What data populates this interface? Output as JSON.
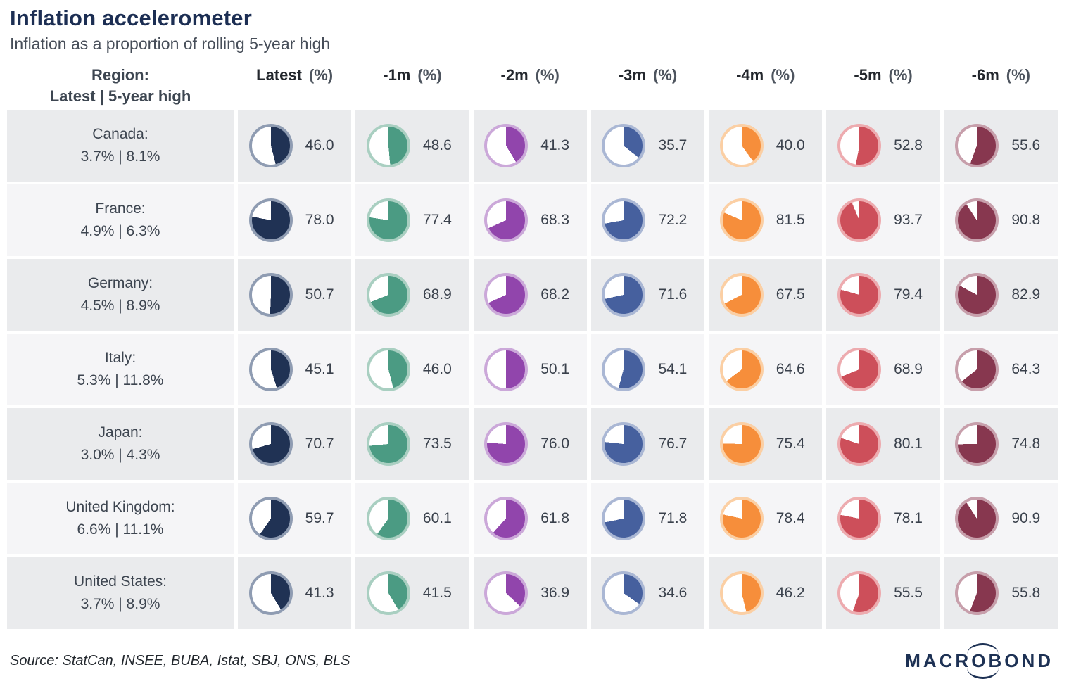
{
  "title": "Inflation accelerometer",
  "subtitle": "Inflation as a proportion of rolling 5-year high",
  "header": {
    "region_line1": "Region:",
    "region_line2": "Latest | 5-year high",
    "columns": [
      {
        "key": "latest",
        "label": "Latest",
        "unit": "(%)",
        "fill": "#203254",
        "ring": "#8f9cb2"
      },
      {
        "key": "1m",
        "label": "-1m",
        "unit": "(%)",
        "fill": "#4b9b83",
        "ring": "#a9cfc1"
      },
      {
        "key": "2m",
        "label": "-2m",
        "unit": "(%)",
        "fill": "#9145ac",
        "ring": "#cba8d9"
      },
      {
        "key": "3m",
        "label": "-3m",
        "unit": "(%)",
        "fill": "#46609e",
        "ring": "#aab7d4"
      },
      {
        "key": "4m",
        "label": "-4m",
        "unit": "(%)",
        "fill": "#f68e3b",
        "ring": "#fbcfa4"
      },
      {
        "key": "5m",
        "label": "-5m",
        "unit": "(%)",
        "fill": "#cd4f5a",
        "ring": "#edabaf"
      },
      {
        "key": "6m",
        "label": "-6m",
        "unit": "(%)",
        "fill": "#87374f",
        "ring": "#c79fab"
      }
    ]
  },
  "rows": [
    {
      "id": "canada",
      "region": "Canada:",
      "detail": "3.7% | 8.1%",
      "values": [
        46.0,
        48.6,
        41.3,
        35.7,
        40.0,
        52.8,
        55.6
      ]
    },
    {
      "id": "france",
      "region": "France:",
      "detail": "4.9% | 6.3%",
      "values": [
        78.0,
        77.4,
        68.3,
        72.2,
        81.5,
        93.7,
        90.8
      ]
    },
    {
      "id": "germany",
      "region": "Germany:",
      "detail": "4.5% | 8.9%",
      "values": [
        50.7,
        68.9,
        68.2,
        71.6,
        67.5,
        79.4,
        82.9
      ]
    },
    {
      "id": "italy",
      "region": "Italy:",
      "detail": "5.3% | 11.8%",
      "values": [
        45.1,
        46.0,
        50.1,
        54.1,
        64.6,
        68.9,
        64.3
      ]
    },
    {
      "id": "japan",
      "region": "Japan:",
      "detail": "3.0% | 4.3%",
      "values": [
        70.7,
        73.5,
        76.0,
        76.7,
        75.4,
        80.1,
        74.8
      ]
    },
    {
      "id": "united-kingdom",
      "region": "United Kingdom:",
      "detail": "6.6% | 11.1%",
      "values": [
        59.7,
        60.1,
        61.8,
        71.8,
        78.4,
        78.1,
        90.9
      ]
    },
    {
      "id": "united-states",
      "region": "United States:",
      "detail": "3.7% | 8.9%",
      "values": [
        41.3,
        41.5,
        36.9,
        34.6,
        46.2,
        55.5,
        55.8
      ]
    }
  ],
  "footer": {
    "source": "Source: StatCan, INSEE, BUBA, Istat, SBJ, ONS, BLS",
    "logo_pre": "MACR",
    "logo_o": "O",
    "logo_post": "BOND"
  },
  "chart_data": {
    "type": "pie",
    "title": "Inflation accelerometer",
    "subtitle": "Inflation as a proportion of rolling 5-year high",
    "description": "Grid of pie gauges; each pie is filled clockwise from 12 o'clock by the stated percentage of the rolling 5-year inflation high.",
    "categories": [
      "Latest (%)",
      "-1m (%)",
      "-2m (%)",
      "-3m (%)",
      "-4m (%)",
      "-5m (%)",
      "-6m (%)"
    ],
    "column_colors": [
      "#203254",
      "#4b9b83",
      "#9145ac",
      "#46609e",
      "#f68e3b",
      "#cd4f5a",
      "#87374f"
    ],
    "series": [
      {
        "name": "Canada",
        "latest_inflation_pct": 3.7,
        "five_year_high_pct": 8.1,
        "values": [
          46.0,
          48.6,
          41.3,
          35.7,
          40.0,
          52.8,
          55.6
        ]
      },
      {
        "name": "France",
        "latest_inflation_pct": 4.9,
        "five_year_high_pct": 6.3,
        "values": [
          78.0,
          77.4,
          68.3,
          72.2,
          81.5,
          93.7,
          90.8
        ]
      },
      {
        "name": "Germany",
        "latest_inflation_pct": 4.5,
        "five_year_high_pct": 8.9,
        "values": [
          50.7,
          68.9,
          68.2,
          71.6,
          67.5,
          79.4,
          82.9
        ]
      },
      {
        "name": "Italy",
        "latest_inflation_pct": 5.3,
        "five_year_high_pct": 11.8,
        "values": [
          45.1,
          46.0,
          50.1,
          54.1,
          64.6,
          68.9,
          64.3
        ]
      },
      {
        "name": "Japan",
        "latest_inflation_pct": 3.0,
        "five_year_high_pct": 4.3,
        "values": [
          70.7,
          73.5,
          76.0,
          76.7,
          75.4,
          80.1,
          74.8
        ]
      },
      {
        "name": "United Kingdom",
        "latest_inflation_pct": 6.6,
        "five_year_high_pct": 11.1,
        "values": [
          59.7,
          60.1,
          61.8,
          71.8,
          78.4,
          78.1,
          90.9
        ]
      },
      {
        "name": "United States",
        "latest_inflation_pct": 3.7,
        "five_year_high_pct": 8.9,
        "values": [
          41.3,
          41.5,
          36.9,
          34.6,
          46.2,
          55.5,
          55.8
        ]
      }
    ],
    "value_range": [
      0,
      100
    ],
    "source": "Source: StatCan, INSEE, BUBA, Istat, SBJ, ONS, BLS",
    "brand": "MACROBOND"
  }
}
